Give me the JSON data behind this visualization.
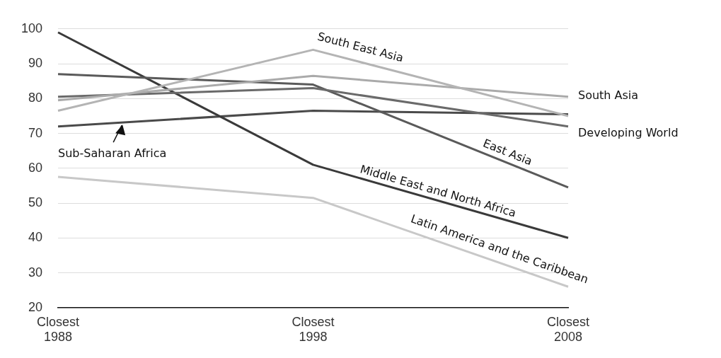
{
  "chart_data": {
    "type": "line",
    "categories": [
      "Closest 1988",
      "Closest 1998",
      "Closest 2008"
    ],
    "ylim": [
      20,
      100
    ],
    "yticks": [
      20,
      30,
      40,
      50,
      60,
      70,
      80,
      90,
      100
    ],
    "grid": "y",
    "legend": false,
    "marker": "none",
    "line_style": "solid",
    "series": [
      {
        "name": "South East Asia",
        "color": "#b4b4b4",
        "values": [
          76.5,
          94,
          75
        ]
      },
      {
        "name": "South Asia",
        "color": "#aaaaaa",
        "values": [
          79.5,
          86.5,
          80.5
        ]
      },
      {
        "name": "Developing World",
        "color": "#6a6a6a",
        "values": [
          80.5,
          83,
          72
        ]
      },
      {
        "name": "East Asia",
        "color": "#5a5a5a",
        "values": [
          87,
          84,
          54.5
        ]
      },
      {
        "name": "Middle East and North Africa",
        "color": "#3a3a3a",
        "values": [
          99,
          61,
          40
        ]
      },
      {
        "name": "Latin America and the Caribbean",
        "color": "#c8c8c8",
        "values": [
          57.5,
          51.5,
          26
        ]
      },
      {
        "name": "Sub-Saharan Africa",
        "color": "#4a4a4a",
        "values": [
          72,
          76.5,
          75.5
        ]
      }
    ]
  }
}
